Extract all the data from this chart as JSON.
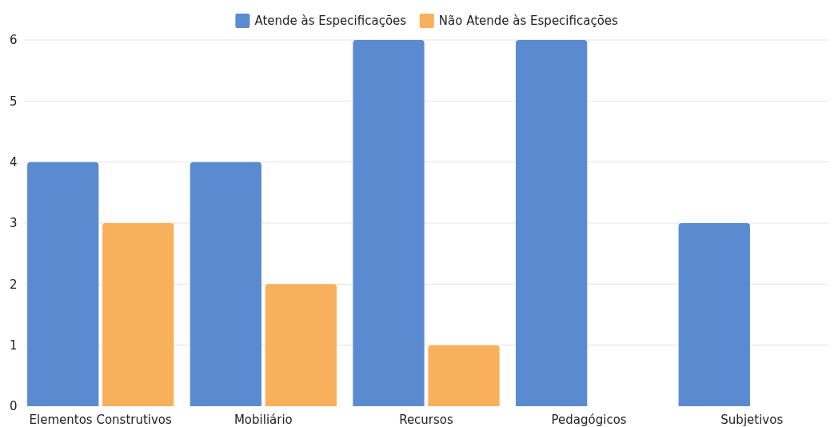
{
  "chart_data": {
    "type": "bar",
    "categories": [
      "Elementos Construtivos",
      "Mobiliário",
      "Recursos",
      "Pedagógicos",
      "Subjetivos"
    ],
    "series": [
      {
        "name": "Atende às Especificações",
        "color": "#5a8bd1",
        "values": [
          4,
          4,
          6,
          6,
          3
        ]
      },
      {
        "name": "Não Atende às Especificações",
        "color": "#f9b05c",
        "values": [
          3,
          2,
          1,
          0,
          0
        ]
      }
    ],
    "ylim": [
      0,
      6
    ],
    "yticks": [
      0,
      1,
      2,
      3,
      4,
      5,
      6
    ],
    "grid": "y",
    "legend": "top"
  }
}
